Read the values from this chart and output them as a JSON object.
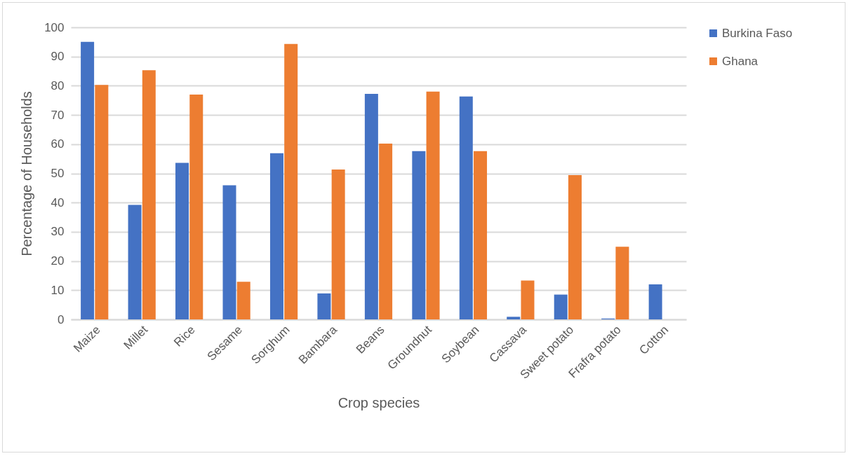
{
  "chart_data": {
    "type": "bar",
    "xlabel": "Crop species",
    "ylabel": "Percentage of Households",
    "categories": [
      "Maize",
      "Millet",
      "Rice",
      "Sesame",
      "Sorghum",
      "Bambara",
      "Beans",
      "Groundnut",
      "Soybean",
      "Cassava",
      "Sweet potato",
      "Frafra potato",
      "Cotton"
    ],
    "series": [
      {
        "name": "Burkina Faso",
        "color": "#4472c4",
        "values": [
          95.0,
          39.2,
          53.6,
          45.9,
          56.9,
          8.9,
          77.2,
          57.6,
          76.3,
          0.9,
          8.5,
          0.3,
          12.0
        ]
      },
      {
        "name": "Ghana",
        "color": "#ed7d31",
        "values": [
          80.3,
          85.3,
          77.0,
          12.9,
          94.3,
          51.3,
          60.2,
          78.0,
          57.6,
          13.3,
          49.4,
          24.9,
          null
        ]
      }
    ],
    "ylim": [
      0,
      100
    ],
    "yticks": [
      0,
      10,
      20,
      30,
      40,
      50,
      60,
      70,
      80,
      90,
      100
    ],
    "grid": "y",
    "legend": "right"
  }
}
